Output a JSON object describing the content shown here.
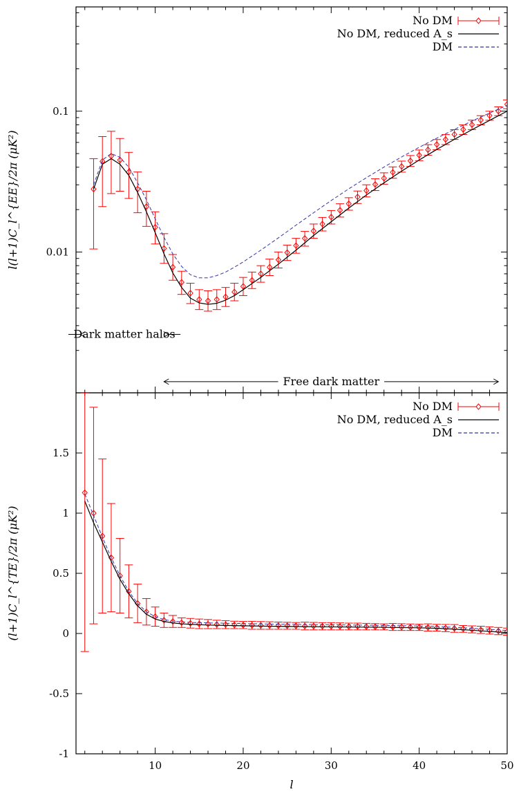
{
  "chart_data": [
    {
      "type": "line",
      "panel": "top",
      "yscale": "log",
      "ylabel": "l(l+1)C_l^{EE}/2π (μK²)",
      "xlim": [
        1,
        50
      ],
      "ylim": [
        0.001,
        0.55
      ],
      "yticks": [
        0.01,
        0.1
      ],
      "ytick_labels": [
        "0.01",
        "0.1"
      ],
      "legend": [
        "No DM",
        "No DM, reduced A_s",
        "DM"
      ],
      "legend_position": "top-right",
      "series": [
        {
          "name": "No DM",
          "style": "points-errorbars",
          "color": "#ff0000",
          "x": [
            3,
            4,
            5,
            6,
            7,
            8,
            9,
            10,
            11,
            12,
            13,
            14,
            15,
            16,
            17,
            18,
            19,
            20,
            21,
            22,
            23,
            24,
            25,
            26,
            27,
            28,
            29,
            30,
            31,
            32,
            33,
            34,
            35,
            36,
            37,
            38,
            39,
            40,
            41,
            42,
            43,
            44,
            45,
            46,
            47,
            48,
            49,
            50
          ],
          "y": [
            0.028,
            0.044,
            0.048,
            0.045,
            0.037,
            0.028,
            0.021,
            0.015,
            0.0106,
            0.0078,
            0.0061,
            0.0051,
            0.0046,
            0.0045,
            0.0046,
            0.0048,
            0.0052,
            0.0057,
            0.0063,
            0.007,
            0.0078,
            0.0088,
            0.0099,
            0.0111,
            0.0125,
            0.0141,
            0.0158,
            0.0177,
            0.0198,
            0.022,
            0.0246,
            0.0273,
            0.0302,
            0.0334,
            0.0368,
            0.0405,
            0.0444,
            0.0487,
            0.0532,
            0.058,
            0.063,
            0.0684,
            0.0741,
            0.0801,
            0.0864,
            0.093,
            0.1,
            0.112
          ],
          "yerr_low": [
            0.0105,
            0.021,
            0.026,
            0.027,
            0.024,
            0.019,
            0.0152,
            0.0114,
            0.0083,
            0.0063,
            0.005,
            0.0043,
            0.0039,
            0.0038,
            0.0039,
            0.0041,
            0.0045,
            0.0049,
            0.0055,
            0.0061,
            0.0068,
            0.0077,
            0.0087,
            0.0098,
            0.011,
            0.0125,
            0.0141,
            0.0158,
            0.0177,
            0.0198,
            0.0221,
            0.0246,
            0.0273,
            0.0303,
            0.0334,
            0.0369,
            0.0405,
            0.0445,
            0.0487,
            0.0532,
            0.0579,
            0.063,
            0.0683,
            0.074,
            0.08,
            0.0862,
            0.0929,
            0.104
          ],
          "yerr_high": [
            0.046,
            0.066,
            0.072,
            0.064,
            0.051,
            0.037,
            0.027,
            0.0193,
            0.0135,
            0.0096,
            0.0073,
            0.006,
            0.0054,
            0.0053,
            0.0054,
            0.0056,
            0.006,
            0.0066,
            0.0072,
            0.008,
            0.0089,
            0.01,
            0.0112,
            0.0125,
            0.014,
            0.0158,
            0.0176,
            0.0197,
            0.022,
            0.0243,
            0.0271,
            0.03,
            0.0331,
            0.0365,
            0.0402,
            0.0442,
            0.0484,
            0.053,
            0.0578,
            0.0629,
            0.0682,
            0.0739,
            0.0799,
            0.0863,
            0.0929,
            0.0999,
            0.1073,
            0.12
          ]
        },
        {
          "name": "No DM, reduced A_s",
          "style": "solid",
          "color": "#000000",
          "x": [
            3,
            4,
            5,
            6,
            7,
            8,
            9,
            10,
            11,
            12,
            13,
            14,
            15,
            16,
            17,
            18,
            19,
            20,
            22,
            24,
            26,
            28,
            30,
            32,
            34,
            36,
            38,
            40,
            42,
            44,
            46,
            48,
            50
          ],
          "y": [
            0.028,
            0.042,
            0.046,
            0.042,
            0.035,
            0.0265,
            0.0193,
            0.0137,
            0.0097,
            0.0071,
            0.0056,
            0.0047,
            0.00435,
            0.00425,
            0.00432,
            0.00455,
            0.0049,
            0.0054,
            0.0066,
            0.0082,
            0.0103,
            0.0131,
            0.0164,
            0.0205,
            0.0254,
            0.031,
            0.0375,
            0.045,
            0.0535,
            0.0631,
            0.0739,
            0.086,
            0.1
          ]
        },
        {
          "name": "DM",
          "style": "dashed",
          "color": "#3333aa",
          "x": [
            3,
            4,
            5,
            6,
            7,
            8,
            9,
            10,
            11,
            12,
            13,
            14,
            15,
            16,
            17,
            18,
            19,
            20,
            22,
            24,
            26,
            28,
            30,
            32,
            34,
            36,
            38,
            40,
            42,
            44,
            46,
            48,
            50
          ],
          "y": [
            0.03,
            0.045,
            0.05,
            0.047,
            0.04,
            0.031,
            0.0235,
            0.0172,
            0.0127,
            0.0097,
            0.0079,
            0.0069,
            0.00655,
            0.00655,
            0.0068,
            0.0072,
            0.0078,
            0.0085,
            0.0103,
            0.0126,
            0.0155,
            0.019,
            0.0232,
            0.0281,
            0.0337,
            0.0401,
            0.0473,
            0.0554,
            0.0643,
            0.0742,
            0.0851,
            0.097,
            0.11
          ]
        }
      ],
      "annotations": [
        {
          "text": "Dark matter halos",
          "x_from": 1.5,
          "x_to": 11.5,
          "y": 0.0026
        },
        {
          "text": "Free dark matter",
          "x_from": 11,
          "x_to": 49,
          "y": 0.0012
        }
      ]
    },
    {
      "type": "line",
      "panel": "bottom",
      "xlabel": "l",
      "ylabel": "(l+1)C_l^{TE}/2π (μK²)",
      "xlim": [
        1,
        50
      ],
      "ylim": [
        -1,
        2
      ],
      "xticks": [
        10,
        20,
        30,
        40,
        50
      ],
      "xtick_labels": [
        "10",
        "20",
        "30",
        "40",
        "50"
      ],
      "yticks": [
        -1,
        -0.5,
        0,
        0.5,
        1,
        1.5
      ],
      "ytick_labels": [
        "-1",
        "-0.5",
        "0",
        "0.5",
        "1",
        "1.5"
      ],
      "legend": [
        "No DM",
        "No DM, reduced A_s",
        "DM"
      ],
      "legend_position": "top-right",
      "series": [
        {
          "name": "No DM",
          "style": "points-errorbars",
          "color": "#ff0000",
          "x": [
            2,
            3,
            4,
            5,
            6,
            7,
            8,
            9,
            10,
            11,
            12,
            13,
            14,
            15,
            16,
            17,
            18,
            19,
            20,
            21,
            22,
            23,
            24,
            25,
            26,
            27,
            28,
            29,
            30,
            31,
            32,
            33,
            34,
            35,
            36,
            37,
            38,
            39,
            40,
            41,
            42,
            43,
            44,
            45,
            46,
            47,
            48,
            49,
            50
          ],
          "y": [
            1.17,
            1.0,
            0.81,
            0.63,
            0.48,
            0.35,
            0.25,
            0.18,
            0.14,
            0.11,
            0.1,
            0.09,
            0.085,
            0.08,
            0.078,
            0.075,
            0.073,
            0.071,
            0.07,
            0.068,
            0.067,
            0.066,
            0.065,
            0.064,
            0.063,
            0.062,
            0.061,
            0.06,
            0.06,
            0.059,
            0.058,
            0.058,
            0.057,
            0.056,
            0.055,
            0.054,
            0.053,
            0.052,
            0.051,
            0.05,
            0.048,
            0.045,
            0.042,
            0.038,
            0.034,
            0.03,
            0.025,
            0.02,
            0.015
          ],
          "yerr_low": [
            -0.15,
            0.08,
            0.17,
            0.18,
            0.17,
            0.13,
            0.09,
            0.07,
            0.06,
            0.05,
            0.05,
            0.05,
            0.045,
            0.04,
            0.04,
            0.04,
            0.04,
            0.04,
            0.04,
            0.035,
            0.035,
            0.035,
            0.035,
            0.035,
            0.035,
            0.03,
            0.03,
            0.03,
            0.03,
            0.03,
            0.03,
            0.03,
            0.03,
            0.03,
            0.03,
            0.025,
            0.025,
            0.025,
            0.025,
            0.02,
            0.02,
            0.015,
            0.01,
            0.01,
            0.005,
            0.0,
            -0.005,
            -0.01,
            -0.015
          ],
          "yerr_high": [
            2.0,
            1.88,
            1.45,
            1.08,
            0.79,
            0.57,
            0.41,
            0.29,
            0.22,
            0.17,
            0.15,
            0.13,
            0.125,
            0.12,
            0.116,
            0.11,
            0.106,
            0.102,
            0.1,
            0.101,
            0.099,
            0.097,
            0.095,
            0.093,
            0.091,
            0.094,
            0.092,
            0.09,
            0.09,
            0.088,
            0.086,
            0.086,
            0.084,
            0.082,
            0.08,
            0.083,
            0.081,
            0.079,
            0.077,
            0.08,
            0.076,
            0.075,
            0.074,
            0.066,
            0.063,
            0.06,
            0.055,
            0.05,
            0.045
          ]
        },
        {
          "name": "No DM, reduced A_s",
          "style": "solid",
          "color": "#000000",
          "x": [
            2,
            3,
            4,
            5,
            6,
            7,
            8,
            9,
            10,
            11,
            12,
            13,
            14,
            16,
            18,
            20,
            25,
            30,
            35,
            40,
            42,
            44,
            46,
            48,
            50
          ],
          "y": [
            1.1,
            0.92,
            0.76,
            0.6,
            0.45,
            0.33,
            0.23,
            0.16,
            0.12,
            0.1,
            0.088,
            0.08,
            0.076,
            0.07,
            0.067,
            0.064,
            0.058,
            0.055,
            0.052,
            0.047,
            0.043,
            0.036,
            0.027,
            0.017,
            0.008
          ]
        },
        {
          "name": "DM",
          "style": "dashed",
          "color": "#3333aa",
          "x": [
            2,
            3,
            4,
            5,
            6,
            7,
            8,
            9,
            10,
            11,
            12,
            13,
            14,
            16,
            18,
            20,
            25,
            30,
            35,
            40,
            42,
            44,
            46,
            48,
            50
          ],
          "y": [
            1.16,
            0.98,
            0.8,
            0.63,
            0.48,
            0.35,
            0.25,
            0.18,
            0.14,
            0.115,
            0.103,
            0.096,
            0.092,
            0.088,
            0.085,
            0.082,
            0.076,
            0.072,
            0.068,
            0.062,
            0.058,
            0.051,
            0.043,
            0.034,
            0.025
          ]
        }
      ]
    }
  ]
}
